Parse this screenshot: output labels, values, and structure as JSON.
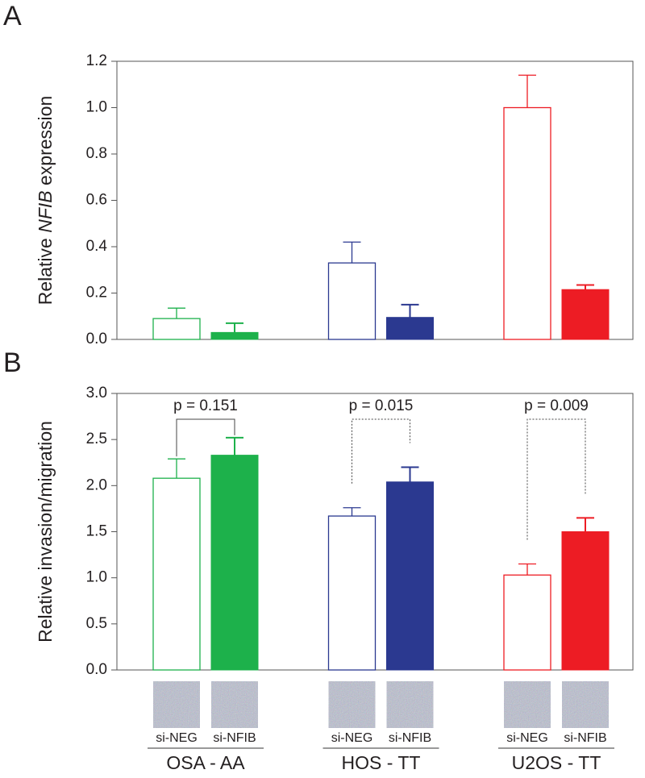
{
  "chart_data": [
    {
      "type": "bar",
      "panel": "A",
      "y_label": [
        "Relative ",
        "NFIB",
        " expression"
      ],
      "ylim": [
        0,
        1.2
      ],
      "yticks": [
        {
          "value": 0,
          "label": "0.0"
        },
        0.2,
        0.4,
        0.6,
        0.8,
        {
          "value": 1,
          "label": "1.0"
        },
        1.2
      ],
      "group_colors": [
        "#1db14b",
        "#2b3990",
        "#ed1c24"
      ],
      "series": [
        {
          "filled": false,
          "values": [
            0.09,
            0.33,
            1.0
          ],
          "errors": [
            0.045,
            0.09,
            0.14
          ]
        },
        {
          "filled": true,
          "values": [
            0.03,
            0.095,
            0.215
          ],
          "errors": [
            0.04,
            0.055,
            0.02
          ]
        }
      ]
    },
    {
      "type": "bar",
      "panel": "B",
      "y_label": [
        "Relative invasion/migration"
      ],
      "ylim": [
        0,
        3
      ],
      "yticks": [
        {
          "value": 0,
          "label": "0.0"
        },
        0.5,
        {
          "value": 1,
          "label": "1.0"
        },
        1.5,
        {
          "value": 2,
          "label": "2.0"
        },
        2.5,
        {
          "value": 3,
          "label": "3.0"
        }
      ],
      "groups": [
        "OSA - AA",
        "HOS - TT",
        "U2OS - TT"
      ],
      "group_colors": [
        "#1db14b",
        "#2b3990",
        "#ed1c24"
      ],
      "series": [
        {
          "name": "si-NEG",
          "filled": false,
          "values": [
            2.08,
            1.67,
            1.03
          ],
          "errors": [
            0.21,
            0.09,
            0.12
          ]
        },
        {
          "name": "si-NFIB",
          "filled": true,
          "values": [
            2.33,
            2.04,
            1.5
          ],
          "errors": [
            0.19,
            0.16,
            0.15
          ]
        }
      ],
      "annotations": [
        {
          "text": "p = 0.151",
          "group": 0,
          "line_style": "solid"
        },
        {
          "text": "p = 0.015",
          "group": 1,
          "line_style": "dotted"
        },
        {
          "text": "p = 0.009",
          "group": 2,
          "line_style": "dotted"
        }
      ]
    }
  ]
}
